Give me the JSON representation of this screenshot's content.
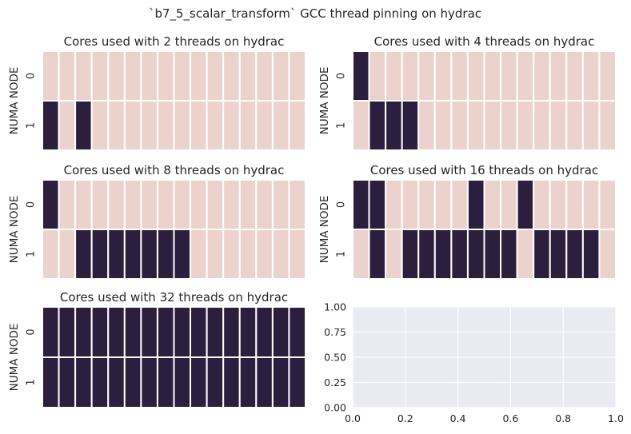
{
  "suptitle": "`b7_5_scalar_transform` GCC thread pinning on hydrac",
  "colors": {
    "idle": "#ecd2cc",
    "used": "#2c1e3d",
    "cell_border": "#ffffff",
    "empty_axes_bg": "#eaeaf2",
    "grid": "#ffffff",
    "text": "#262626"
  },
  "chart_data": [
    {
      "type": "heatmap",
      "title": "Cores used with 2 threads on hydrac",
      "ylabel": "NUMA NODE",
      "row_labels": [
        "0",
        "1"
      ],
      "grid": false,
      "values": [
        [
          0,
          0,
          0,
          0,
          0,
          0,
          0,
          0,
          0,
          0,
          0,
          0,
          0,
          0,
          0,
          0
        ],
        [
          1,
          0,
          1,
          0,
          0,
          0,
          0,
          0,
          0,
          0,
          0,
          0,
          0,
          0,
          0,
          0
        ]
      ]
    },
    {
      "type": "heatmap",
      "title": "Cores used with 4 threads on hydrac",
      "ylabel": "NUMA NODE",
      "row_labels": [
        "0",
        "1"
      ],
      "grid": false,
      "values": [
        [
          1,
          0,
          0,
          0,
          0,
          0,
          0,
          0,
          0,
          0,
          0,
          0,
          0,
          0,
          0,
          0
        ],
        [
          0,
          1,
          1,
          1,
          0,
          0,
          0,
          0,
          0,
          0,
          0,
          0,
          0,
          0,
          0,
          0
        ]
      ]
    },
    {
      "type": "heatmap",
      "title": "Cores used with 8 threads on hydrac",
      "ylabel": "NUMA NODE",
      "row_labels": [
        "0",
        "1"
      ],
      "grid": false,
      "values": [
        [
          1,
          0,
          0,
          0,
          0,
          0,
          0,
          0,
          0,
          0,
          0,
          0,
          0,
          0,
          0,
          0
        ],
        [
          0,
          0,
          1,
          1,
          1,
          1,
          1,
          1,
          1,
          0,
          0,
          0,
          0,
          0,
          0,
          0
        ]
      ]
    },
    {
      "type": "heatmap",
      "title": "Cores used with 16 threads on hydrac",
      "ylabel": "NUMA NODE",
      "row_labels": [
        "0",
        "1"
      ],
      "grid": false,
      "values": [
        [
          1,
          1,
          0,
          0,
          0,
          0,
          0,
          1,
          0,
          0,
          1,
          0,
          0,
          0,
          0,
          0
        ],
        [
          0,
          1,
          0,
          1,
          1,
          1,
          1,
          1,
          1,
          1,
          0,
          1,
          1,
          1,
          1,
          0
        ]
      ]
    },
    {
      "type": "heatmap",
      "title": "Cores used with 32 threads on hydrac",
      "ylabel": "NUMA NODE",
      "row_labels": [
        "0",
        "1"
      ],
      "grid": false,
      "values": [
        [
          1,
          1,
          1,
          1,
          1,
          1,
          1,
          1,
          1,
          1,
          1,
          1,
          1,
          1,
          1,
          1
        ],
        [
          1,
          1,
          1,
          1,
          1,
          1,
          1,
          1,
          1,
          1,
          1,
          1,
          1,
          1,
          1,
          1
        ]
      ]
    },
    {
      "type": "line",
      "title": "",
      "xlim": [
        0,
        1
      ],
      "ylim": [
        0,
        1
      ],
      "xticks": [
        "0.0",
        "0.2",
        "0.4",
        "0.6",
        "0.8",
        "1.0"
      ],
      "yticks": [
        "0.00",
        "0.25",
        "0.50",
        "0.75",
        "1.00"
      ],
      "grid": true,
      "series": []
    }
  ]
}
